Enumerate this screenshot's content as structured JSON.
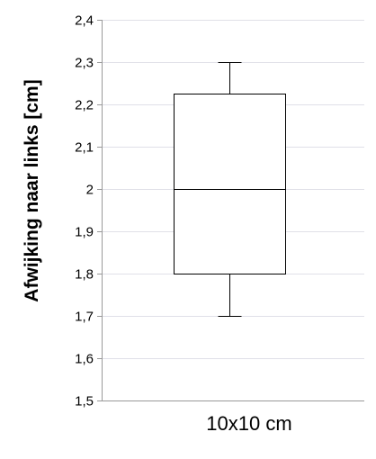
{
  "chart_data": {
    "type": "box",
    "title": "",
    "xlabel": "",
    "ylabel": "Afwijking naar links [cm]",
    "ylim": [
      1.5,
      2.4
    ],
    "yticks": [
      1.5,
      1.6,
      1.7,
      1.8,
      1.9,
      2.0,
      2.1,
      2.2,
      2.3,
      2.4
    ],
    "ytick_labels": [
      "1,5",
      "1,6",
      "1,7",
      "1,8",
      "1,9",
      "2",
      "2,1",
      "2,2",
      "2,3",
      "2,4"
    ],
    "categories": [
      "10x10 cm"
    ],
    "boxes": [
      {
        "category": "10x10 cm",
        "min": 1.7,
        "q1": 1.8,
        "median": 2.0,
        "q3": 2.225,
        "max": 2.3
      }
    ],
    "grid": true,
    "legend": "none",
    "colors": {
      "grid": "#e0e0e8",
      "axis": "#999999",
      "box_stroke": "#000000",
      "box_fill": "#ffffff"
    }
  }
}
